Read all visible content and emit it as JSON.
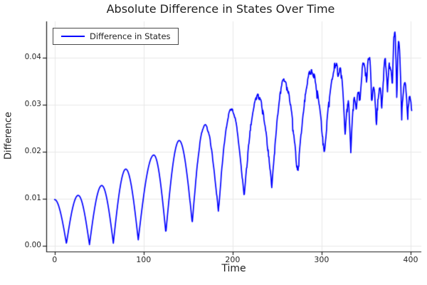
{
  "chart_data": {
    "type": "line",
    "title": "Absolute Difference in States Over Time",
    "xlabel": "Time",
    "ylabel": "Difference",
    "xlim": [
      -9.4,
      412
    ],
    "ylim": [
      -0.0013,
      0.0478
    ],
    "xticks": [
      0,
      100,
      200,
      300,
      400
    ],
    "xtick_labels": [
      "0",
      "100",
      "200",
      "300",
      "400"
    ],
    "yticks": [
      0.0,
      0.01,
      0.02,
      0.03,
      0.04
    ],
    "ytick_labels": [
      "0.00",
      "0.01",
      "0.02",
      "0.03",
      "0.04"
    ],
    "grid": true,
    "legend": {
      "position": "top-left",
      "entries": [
        {
          "label": "Difference in States",
          "color": "#0000ff"
        }
      ]
    },
    "series": [
      {
        "name": "Difference in States",
        "color": "#0000ff",
        "line_width": 1.7,
        "extrema_format": "[time, value] alternating local max / local min read from the plot",
        "extrema_t_v": [
          [
            0,
            0.0098
          ],
          [
            13.3,
            0.0004
          ],
          [
            26.5,
            0.0107
          ],
          [
            39.2,
            0.0002
          ],
          [
            53,
            0.0128
          ],
          [
            66,
            0.0005
          ],
          [
            80,
            0.0163
          ],
          [
            94,
            0.0012
          ],
          [
            111.5,
            0.0193
          ],
          [
            125,
            0.0027
          ],
          [
            140,
            0.0224
          ],
          [
            154.6,
            0.0048
          ],
          [
            169,
            0.0257
          ],
          [
            184,
            0.0073
          ],
          [
            198.5,
            0.0291
          ],
          [
            213,
            0.0103
          ],
          [
            228,
            0.0319
          ],
          [
            244,
            0.0124
          ],
          [
            258,
            0.0351
          ],
          [
            273,
            0.0151
          ],
          [
            288.4,
            0.0371
          ],
          [
            303,
            0.0197
          ],
          [
            316,
            0.0383
          ],
          [
            318.5,
            0.0365
          ],
          [
            321,
            0.0378
          ],
          [
            326.5,
            0.023
          ],
          [
            329.5,
            0.0305
          ],
          [
            332.8,
            0.0198
          ],
          [
            337,
            0.0315
          ],
          [
            339,
            0.029
          ],
          [
            341,
            0.033
          ],
          [
            343,
            0.031
          ],
          [
            347.5,
            0.0392
          ],
          [
            350.5,
            0.0355
          ],
          [
            353.5,
            0.0405
          ],
          [
            356.5,
            0.03
          ],
          [
            358.5,
            0.033
          ],
          [
            361.5,
            0.0262
          ],
          [
            365.5,
            0.033
          ],
          [
            367.5,
            0.029
          ],
          [
            371.5,
            0.0393
          ],
          [
            374,
            0.033
          ],
          [
            376.5,
            0.0382
          ],
          [
            379.5,
            0.0332
          ],
          [
            382.3,
            0.0465
          ],
          [
            384.5,
            0.0312
          ],
          [
            386.5,
            0.0432
          ],
          [
            389.8,
            0.027
          ],
          [
            393.5,
            0.034
          ],
          [
            396.5,
            0.0282
          ],
          [
            399,
            0.031
          ],
          [
            401.5,
            0.0287
          ]
        ],
        "noise": {
          "start_t": 150,
          "end_t": 402,
          "max_amplitude": 0.0011
        }
      }
    ],
    "colors": {
      "background": "#ffffff",
      "grid": "#e7e7e7",
      "axis": "#1a1a1a",
      "tick_text": "#272727",
      "title_text": "#1f1f1f"
    }
  }
}
